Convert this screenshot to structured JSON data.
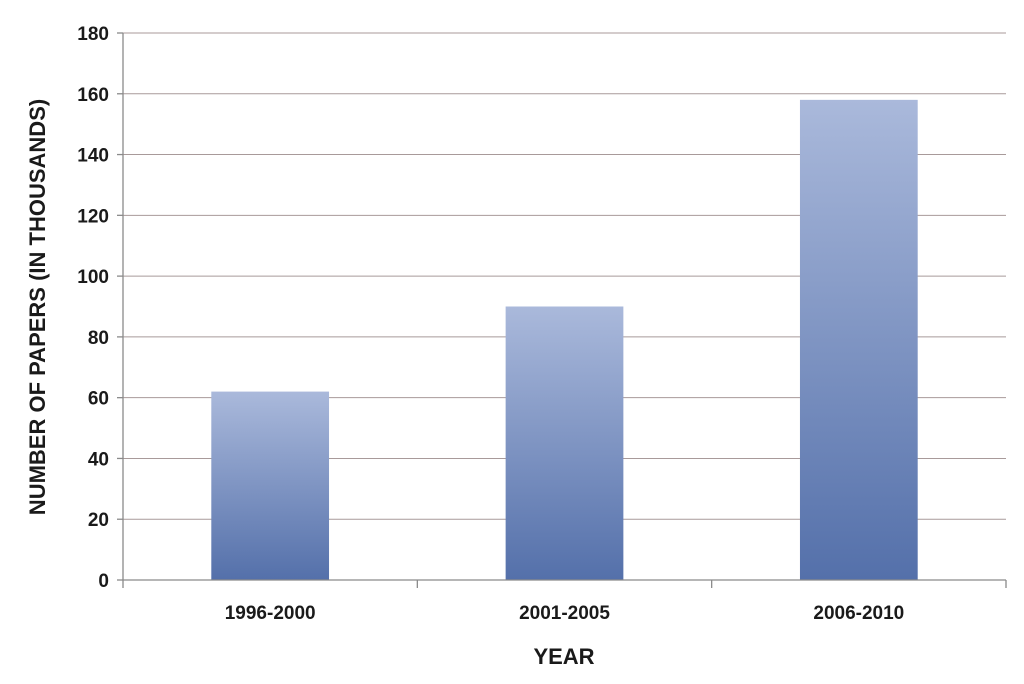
{
  "chart_data": {
    "type": "bar",
    "title": "",
    "xlabel": "YEAR",
    "ylabel": "NUMBER OF PAPERS (IN THOUSANDS)",
    "categories": [
      "1996-2000",
      "2001-2005",
      "2006-2010"
    ],
    "values": [
      62,
      90,
      158
    ],
    "ylim": [
      0,
      180
    ],
    "yticks": [
      0,
      20,
      40,
      60,
      80,
      100,
      120,
      140,
      160,
      180
    ],
    "grid": true,
    "legend": "none",
    "colors": {
      "bar_top": "#aab9db",
      "bar_bottom": "#5470aa",
      "gridline": "#a89a9a",
      "axis": "#8a8a8a"
    }
  }
}
